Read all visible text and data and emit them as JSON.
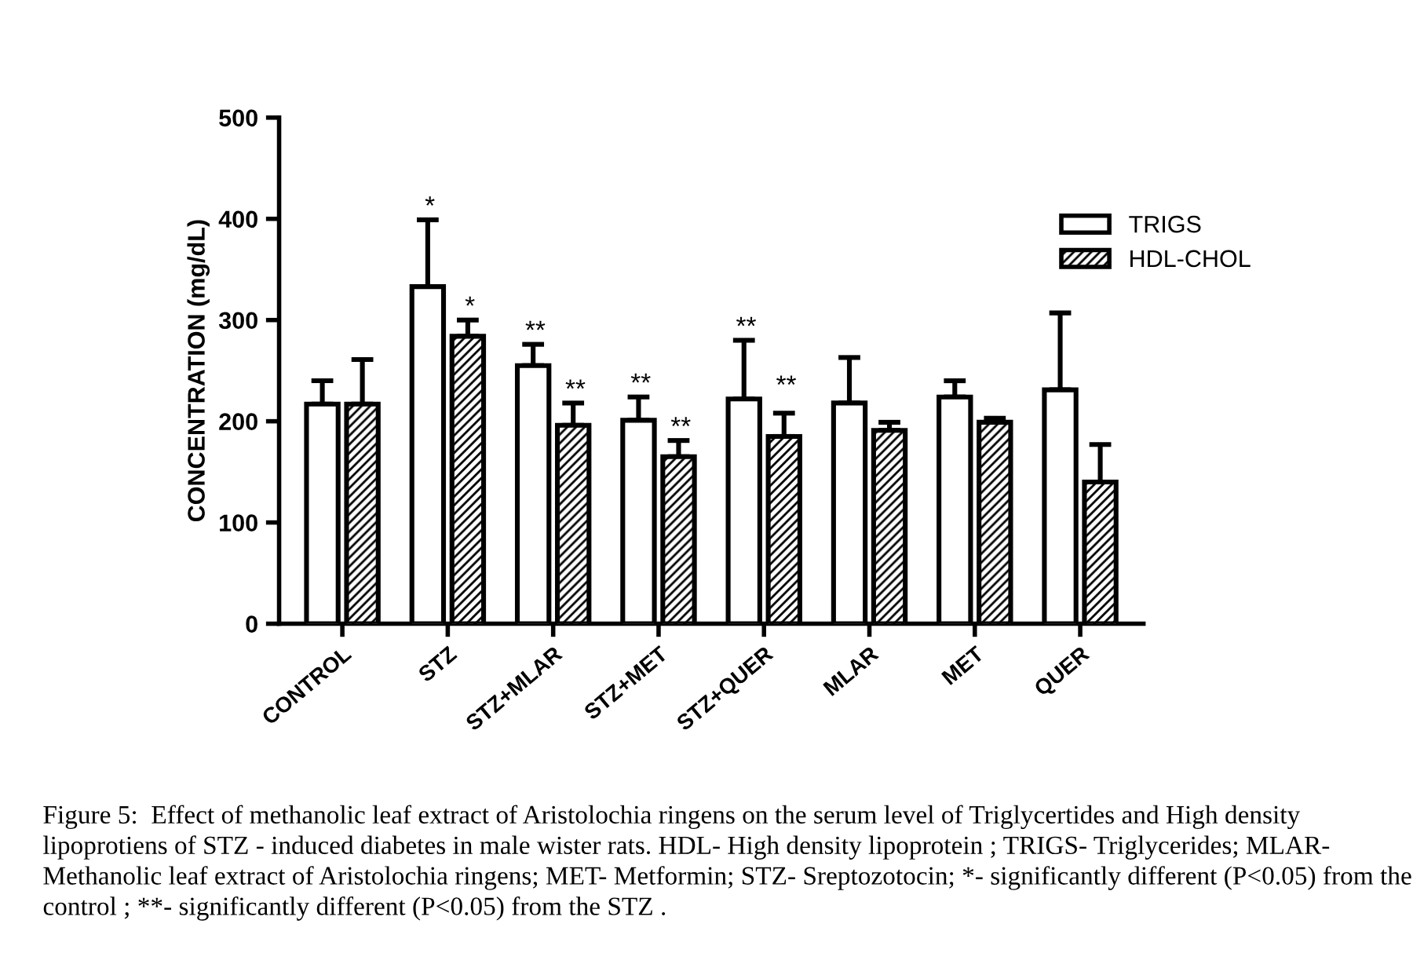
{
  "chart_data": {
    "type": "bar",
    "ylabel": "CONCENTRATION (mg/dL)",
    "categories": [
      "CONTROL",
      "STZ",
      "STZ+MLAR",
      "STZ+MET",
      "STZ+QUER",
      "MLAR",
      "MET",
      "QUER"
    ],
    "series": [
      {
        "name": "TRIGS",
        "color": "#ffffff",
        "values": [
          217,
          333,
          255,
          201,
          222,
          218,
          224,
          231
        ],
        "errors": [
          [
            217,
            240
          ],
          [
            333,
            399
          ],
          [
            255,
            276
          ],
          [
            201,
            224
          ],
          [
            222,
            280
          ],
          [
            218,
            263
          ],
          [
            224,
            240
          ],
          [
            231,
            307
          ]
        ]
      },
      {
        "name": "HDL-CHOL",
        "color": "#000000",
        "values": [
          217,
          284,
          196,
          165,
          185,
          191,
          199,
          140
        ],
        "errors": [
          [
            217,
            261
          ],
          [
            284,
            300
          ],
          [
            196,
            218
          ],
          [
            165,
            181
          ],
          [
            185,
            208
          ],
          [
            191,
            199
          ],
          [
            199,
            203
          ],
          [
            140,
            177
          ]
        ]
      }
    ],
    "ylim": [
      0,
      500
    ],
    "yticks": [
      0,
      100,
      200,
      300,
      400,
      500
    ],
    "grid": false,
    "legend": "top right",
    "annotations": [
      {
        "text": "*",
        "x": "STZ",
        "y": 399
      },
      {
        "text": "*",
        "x": "STZ",
        "y": 300
      },
      {
        "text": "**",
        "x": "STZ+MLAR",
        "y": 276
      },
      {
        "text": "**",
        "x": "STZ+MLAR",
        "y": 218
      },
      {
        "text": "**",
        "x": "STZ+MET",
        "y": 224
      },
      {
        "text": "**",
        "x": "STZ+MET",
        "y": 181
      },
      {
        "text": "**",
        "x": "STZ+QUER",
        "y": 280
      },
      {
        "text": "**",
        "x": "STZ+QUER",
        "y": 222
      },
      "Figure 5:  Effect of methanolic leaf extract of Aristolochia ringens on the serum level of Triglycertides and High density lipoprotiens of STZ - induced diabetes in male wister rats. HDL- High density lipoprotein ; TRIGS- Triglycerides; MLAR- Methanolic leaf extract of Aristolochia ringens; MET- Metformin; STZ- Sreptozotocin; *- significantly different (P<0.05) from the control ; **- significantly different (P<0.05) from the STZ ."
    ]
  }
}
